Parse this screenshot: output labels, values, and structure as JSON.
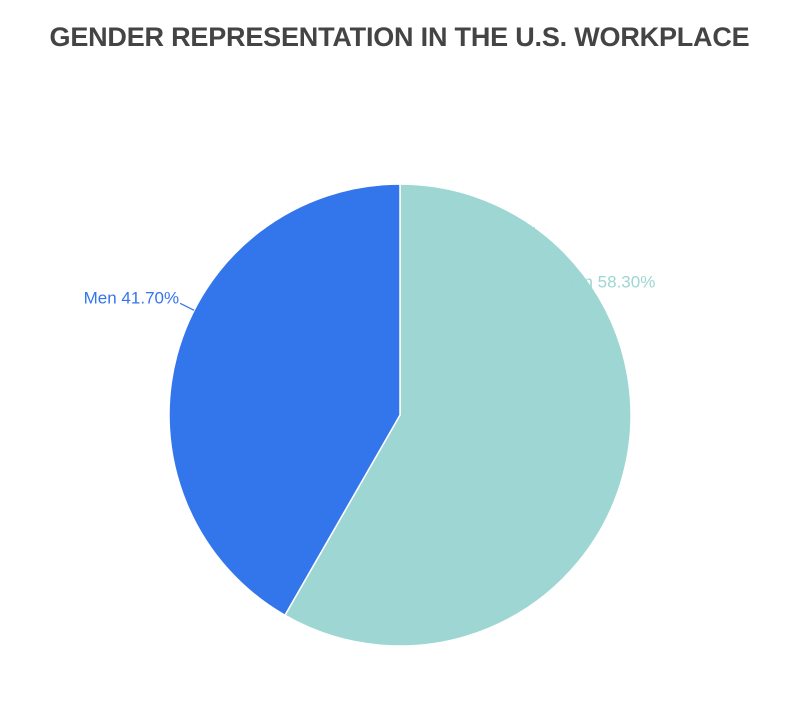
{
  "chart_data": {
    "type": "pie",
    "title": "GENDER REPRESENTATION IN THE U.S. WORKPLACE",
    "unit": "%",
    "slices": [
      {
        "name": "Women",
        "value": 58.3,
        "label": "Women 58.30%",
        "color": "#9dd6d2"
      },
      {
        "name": "Men",
        "value": 41.7,
        "label": "Men 41.70%",
        "color": "#3376ec"
      }
    ],
    "start": "top",
    "direction": "clockwise",
    "slice_border_color": "#ffffff"
  }
}
